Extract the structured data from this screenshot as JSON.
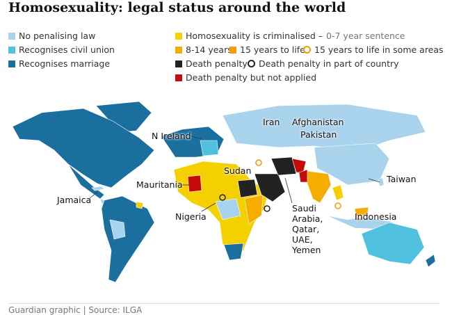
{
  "title": "Homosexuality: legal status around the world",
  "legend": [
    {
      "label": "No penalising law",
      "color": "#a9d3ec",
      "marker": "square"
    },
    {
      "label": "Recognises civil union",
      "color": "#4fc0de",
      "marker": "square"
    },
    {
      "label": "Recognises marriage",
      "color": "#1b6f9f",
      "marker": "square"
    },
    {
      "label": "Homosexuality is criminalised –",
      "detail": "0-7 year sentence",
      "color": "#f5d000",
      "marker": "square"
    },
    {
      "label": "8-14 years",
      "color": "#f5ad00",
      "marker": "square"
    },
    {
      "label": "15 years to life",
      "color": "#f59a00",
      "marker": "square"
    },
    {
      "label": "15 years to life in some areas",
      "color": "#f59a00",
      "marker": "circle"
    },
    {
      "label": "Death penalty",
      "color": "#222222",
      "marker": "square"
    },
    {
      "label": "Death penalty in part of country",
      "color": "#222222",
      "marker": "circle"
    },
    {
      "label": "Death penalty but not applied",
      "color": "#c40a0a",
      "marker": "square"
    }
  ],
  "map_labels": [
    "Iran",
    "Afghanistan",
    "Pakistan",
    "N Ireland",
    "Sudan",
    "Taiwan",
    "Mauritania",
    "Jamaica",
    "Nigeria",
    "Indonesia",
    [
      "Saudi",
      "Arabia,",
      "Qatar,",
      "UAE,",
      "Yemen"
    ]
  ],
  "footer": "Guardian graphic | Source: ILGA"
}
